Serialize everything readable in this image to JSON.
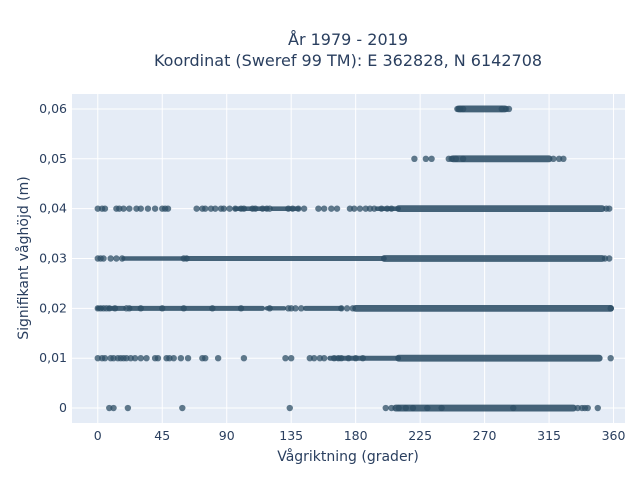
{
  "chart_data": {
    "type": "scatter",
    "title_line1": "År 1979 - 2019",
    "title_line2": "Koordinat (Sweref 99 TM): E 362828, N 6142708",
    "xlabel": "Vågriktning (grader)",
    "ylabel": "Signifikant våghöjd (m)",
    "xlim": [
      -18,
      368
    ],
    "ylim": [
      -0.003,
      0.063
    ],
    "xticks": [
      0,
      45,
      90,
      135,
      180,
      225,
      270,
      315,
      360
    ],
    "xtick_labels": [
      "0",
      "45",
      "90",
      "135",
      "180",
      "225",
      "270",
      "315",
      "360"
    ],
    "yticks": [
      0,
      0.01,
      0.02,
      0.03,
      0.04,
      0.05,
      0.06
    ],
    "ytick_labels": [
      "0",
      "0,01",
      "0,02",
      "0,03",
      "0,04",
      "0,05",
      "0,06"
    ],
    "grid": true,
    "colors": {
      "background": "#e5ecf6",
      "grid": "#ffffff",
      "marker": "#2e4f66",
      "text": "#2a3f5f"
    },
    "series": [
      {
        "values_label": "0",
        "y": 0,
        "segments": [
          [
            208,
            332,
            3.4
          ]
        ],
        "points": [
          8,
          11,
          21,
          59,
          134,
          201,
          205,
          210,
          215,
          220,
          230,
          240,
          290,
          335,
          338,
          340,
          342,
          349
        ]
      },
      {
        "values_label": "0,01",
        "y": 0.01,
        "segments": [
          [
            162,
            210,
            2.5
          ],
          [
            210,
            350,
            3.4
          ]
        ],
        "points": [
          0,
          3,
          5,
          9,
          11,
          14,
          16,
          18,
          20,
          23,
          26,
          30,
          34,
          40,
          42,
          48,
          50,
          53,
          58,
          63,
          73,
          75,
          84,
          102,
          131,
          135,
          148,
          151,
          155,
          158,
          165,
          168,
          170,
          175,
          180,
          185,
          358
        ]
      },
      {
        "values_label": "0,02",
        "y": 0.02,
        "segments": [
          [
            0,
            3,
            2.2
          ],
          [
            8,
            18,
            2.5
          ],
          [
            23,
            115,
            2.5
          ],
          [
            118,
            130,
            2.2
          ],
          [
            145,
            170,
            2.5
          ],
          [
            180,
            358,
            3.4
          ]
        ],
        "points": [
          0,
          2,
          4,
          6,
          8,
          12,
          20,
          22,
          30,
          45,
          60,
          80,
          100,
          120,
          133,
          135,
          138,
          142,
          170,
          174,
          178,
          358
        ]
      },
      {
        "values_label": "0,03",
        "y": 0.03,
        "segments": [
          [
            18,
            60,
            2.3
          ],
          [
            62,
            200,
            2.5
          ],
          [
            200,
            352,
            3.4
          ]
        ],
        "points": [
          0,
          2,
          4,
          9,
          13,
          17,
          60,
          62,
          354,
          357
        ]
      },
      {
        "values_label": "0,04",
        "y": 0.04,
        "segments": [
          [
            96,
            118,
            2.3
          ],
          [
            122,
            140,
            2.3
          ],
          [
            195,
            210,
            2.3
          ],
          [
            210,
            352,
            3.4
          ]
        ],
        "points": [
          0,
          3,
          5,
          13,
          15,
          18,
          22,
          27,
          30,
          35,
          40,
          45,
          47,
          49,
          69,
          73,
          75,
          79,
          82,
          86,
          88,
          92,
          96,
          100,
          102,
          108,
          110,
          115,
          118,
          120,
          133,
          136,
          140,
          144,
          154,
          158,
          163,
          167,
          176,
          179,
          183,
          187,
          190,
          193,
          198,
          202,
          205,
          355,
          357
        ]
      },
      {
        "values_label": "0,05",
        "y": 0.05,
        "segments": [
          [
            248,
            315,
            3.4
          ]
        ],
        "points": [
          221,
          229,
          233,
          245,
          247,
          250,
          255,
          318,
          322,
          325
        ]
      },
      {
        "values_label": "0,06",
        "y": 0.06,
        "segments": [
          [
            252,
            284,
            3.4
          ]
        ],
        "points": [
          251,
          253,
          255,
          282,
          285,
          287
        ]
      }
    ]
  }
}
